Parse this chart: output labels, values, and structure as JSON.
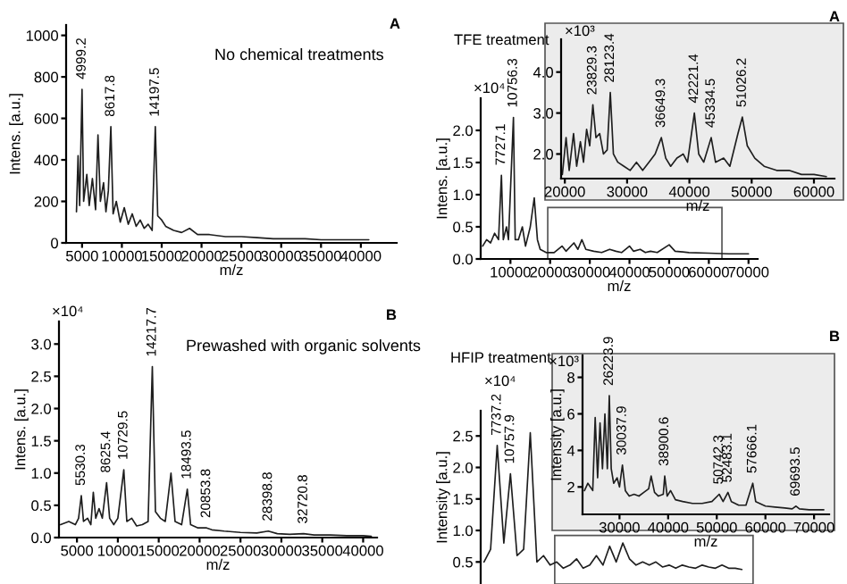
{
  "chart_data": [
    {
      "type": "line",
      "title": "No chemical treatments",
      "xlabel": "m/z",
      "ylabel": "Intens. [a.u.]",
      "xlim": [
        3000,
        44500
      ],
      "ylim": [
        0,
        1050
      ],
      "xticks": [
        5000,
        10000,
        15000,
        20000,
        25000,
        30000,
        35000,
        40000
      ],
      "yticks": [
        0,
        200,
        400,
        600,
        800,
        1000
      ],
      "x": [
        4300,
        4500,
        4700,
        4999,
        5200,
        5600,
        5900,
        6300,
        6700,
        7000,
        7300,
        7700,
        8000,
        8300,
        8617,
        8900,
        9300,
        9800,
        10300,
        10800,
        11300,
        11800,
        12300,
        12800,
        13300,
        13800,
        14197,
        14500,
        15000,
        15500,
        16500,
        17500,
        18500,
        19500,
        21000,
        23000,
        25000,
        27000,
        29000,
        31000,
        33000,
        35000,
        37000,
        39000,
        41000
      ],
      "series": [
        {
          "color": "#1e1e1e",
          "values": [
            150,
            420,
            180,
            740,
            200,
            330,
            180,
            310,
            160,
            520,
            200,
            290,
            150,
            250,
            560,
            140,
            200,
            100,
            170,
            90,
            140,
            80,
            110,
            70,
            90,
            60,
            560,
            130,
            110,
            80,
            60,
            50,
            70,
            40,
            40,
            30,
            30,
            25,
            20,
            20,
            20,
            15,
            15,
            15,
            15
          ]
        }
      ],
      "annotations": [
        "A",
        {
          "text": "4999.2",
          "x": 4999,
          "y": 740
        },
        {
          "text": "8617.8",
          "x": 8617,
          "y": 560
        },
        {
          "text": "14197.5",
          "x": 14197,
          "y": 560
        }
      ]
    },
    {
      "type": "line",
      "title": "TFE treatment",
      "xlabel": "m/z",
      "ylabel": "Intens. [a.u.]",
      "xlim": [
        2500,
        72300
      ],
      "ylim": [
        0,
        2.5
      ],
      "xticks": [
        10000,
        20000,
        30000,
        40000,
        50000,
        60000,
        70000
      ],
      "yticks": [
        {
          "value": 0,
          "label": "0.0"
        },
        {
          "value": 0.5,
          "label": "0.5"
        },
        {
          "value": 1,
          "label": "1.0"
        },
        {
          "value": 1.5,
          "label": "1.5"
        },
        {
          "value": 2,
          "label": "2.0"
        }
      ],
      "x": [
        3000,
        4000,
        5000,
        6000,
        7000,
        7727,
        8200,
        9000,
        9500,
        10756,
        11200,
        12000,
        13000,
        13800,
        15000,
        16000,
        16800,
        17500,
        19000,
        21000,
        23000,
        24000,
        26000,
        27000,
        28000,
        29000,
        31000,
        33000,
        35000,
        36600,
        38000,
        40000,
        41000,
        42700,
        44000,
        45300,
        47000,
        50000,
        51500,
        55000,
        60000,
        65000,
        70000
      ],
      "series": [
        {
          "color": "#1e1e1e",
          "values": [
            0.2,
            0.3,
            0.25,
            0.4,
            0.3,
            1.3,
            0.3,
            0.5,
            0.3,
            2.2,
            0.3,
            0.3,
            0.5,
            0.2,
            0.5,
            0.95,
            0.3,
            0.15,
            0.1,
            0.1,
            0.2,
            0.12,
            0.25,
            0.15,
            0.3,
            0.15,
            0.12,
            0.1,
            0.15,
            0.12,
            0.1,
            0.2,
            0.12,
            0.15,
            0.1,
            0.12,
            0.1,
            0.22,
            0.12,
            0.1,
            0.09,
            0.08,
            0.08
          ]
        }
      ],
      "annotations": [
        "A",
        "×10⁴",
        {
          "text": "7727.1",
          "x": 7727,
          "y": 1.3
        },
        {
          "text": "10756.3",
          "x": 10756,
          "y": 2.2
        }
      ]
    },
    {
      "type": "line",
      "xlabel": "m/z",
      "xlim": [
        19400,
        63300
      ],
      "ylim": [
        1.4,
        4.8
      ],
      "xticks": [
        20000,
        30000,
        40000,
        50000,
        60000
      ],
      "yticks": [
        {
          "value": 2,
          "label": "2.0"
        },
        {
          "value": 3,
          "label": "3.0"
        },
        {
          "value": 4,
          "label": "4.0"
        }
      ],
      "x": [
        19600,
        20200,
        20700,
        21400,
        21900,
        22500,
        23000,
        23500,
        24000,
        24500,
        25000,
        25600,
        26200,
        26800,
        27300,
        27800,
        28500,
        29500,
        30500,
        31500,
        32500,
        33500,
        34500,
        35500,
        36200,
        37000,
        38000,
        39000,
        39700,
        40800,
        41500,
        42300,
        43500,
        44200,
        45500,
        46500,
        47800,
        48500,
        49300,
        50500,
        52000,
        54000,
        56000,
        58000,
        60000,
        62000
      ],
      "series": [
        {
          "color": "#1e1e1e",
          "values": [
            1.5,
            2.4,
            1.6,
            2.5,
            1.7,
            2.3,
            1.8,
            2.6,
            2.2,
            3.2,
            2.4,
            2.5,
            2.0,
            2.1,
            3.5,
            2.0,
            1.8,
            1.7,
            1.6,
            1.8,
            1.6,
            1.8,
            2.0,
            2.4,
            1.9,
            1.7,
            1.9,
            2.0,
            1.8,
            3.0,
            2.0,
            1.8,
            2.4,
            1.8,
            1.9,
            1.7,
            2.5,
            2.9,
            2.2,
            1.9,
            1.7,
            1.6,
            1.6,
            1.5,
            1.5,
            1.45
          ]
        }
      ],
      "annotations": [
        "×10³",
        {
          "text": "23829.3",
          "x": 24500,
          "y": 3.2
        },
        {
          "text": "28123.4",
          "x": 27300,
          "y": 3.5
        },
        {
          "text": "36649.3",
          "x": 35500,
          "y": 2.4
        },
        {
          "text": "42221.4",
          "x": 40800,
          "y": 3.0
        },
        {
          "text": "45334.5",
          "x": 43500,
          "y": 2.4
        },
        {
          "text": "51026.2",
          "x": 48500,
          "y": 2.9
        }
      ]
    },
    {
      "type": "line",
      "title": "Prewashed with organic solvents",
      "xlabel": "m/z",
      "ylabel": "Intens. [a.u.]",
      "xlim": [
        2800,
        41700
      ],
      "ylim": [
        0,
        3.35
      ],
      "xticks": [
        5000,
        10000,
        15000,
        20000,
        25000,
        30000,
        35000,
        40000
      ],
      "yticks": [
        {
          "value": 0,
          "label": "0.0"
        },
        {
          "value": 0.5,
          "label": "0.5"
        },
        {
          "value": 1,
          "label": "1.0"
        },
        {
          "value": 1.5,
          "label": "1.5"
        },
        {
          "value": 2,
          "label": "2.0"
        },
        {
          "value": 2.5,
          "label": "2.5"
        },
        {
          "value": 3,
          "label": "3.0"
        }
      ],
      "x": [
        3000,
        4000,
        4800,
        5200,
        5530,
        5800,
        6300,
        6700,
        7000,
        7300,
        7700,
        8100,
        8625,
        9000,
        9500,
        10000,
        10730,
        11100,
        11700,
        12300,
        13000,
        13700,
        14218,
        14600,
        15200,
        15800,
        16500,
        17000,
        17800,
        18494,
        18900,
        19800,
        20854,
        21500,
        23000,
        25000,
        27000,
        28399,
        29500,
        31000,
        32721,
        34000,
        36000,
        38000,
        40000,
        41000
      ],
      "series": [
        {
          "color": "#1e1e1e",
          "values": [
            0.2,
            0.25,
            0.2,
            0.3,
            0.65,
            0.25,
            0.3,
            0.2,
            0.7,
            0.3,
            0.45,
            0.3,
            0.85,
            0.3,
            0.2,
            0.3,
            1.05,
            0.25,
            0.3,
            0.18,
            0.2,
            0.25,
            2.65,
            0.4,
            0.3,
            0.25,
            1.0,
            0.25,
            0.2,
            0.75,
            0.2,
            0.15,
            0.15,
            0.12,
            0.1,
            0.08,
            0.07,
            0.1,
            0.06,
            0.05,
            0.06,
            0.04,
            0.04,
            0.03,
            0.03,
            0.02
          ]
        }
      ],
      "annotations": [
        "B",
        "×10⁴",
        {
          "text": "5530.3",
          "x": 5530,
          "y": 0.65
        },
        {
          "text": "8625.4",
          "x": 8625,
          "y": 0.85
        },
        {
          "text": "10729.5",
          "x": 10730,
          "y": 1.05
        },
        {
          "text": "14217.7",
          "x": 14218,
          "y": 2.65
        },
        {
          "text": "18493.5",
          "x": 18494,
          "y": 0.75
        },
        {
          "text": "20853.8",
          "x": 20854,
          "y": 0.15
        },
        {
          "text": "28398.8",
          "x": 28399,
          "y": 0.1
        },
        {
          "text": "32720.8",
          "x": 32721,
          "y": 0.06
        }
      ]
    },
    {
      "type": "line",
      "title": "HFIP treatment",
      "ylabel": "Intensity [a.u.]",
      "tick_labels": "y",
      "ylim": [
        0.15,
        2.9
      ],
      "yticks": [
        {
          "value": 0.5,
          "label": "0.5"
        },
        {
          "value": 1,
          "label": "1.0"
        },
        {
          "value": 1.5,
          "label": "1.5"
        },
        {
          "value": 2,
          "label": "2.0"
        },
        {
          "value": 2.5,
          "label": "2.5"
        }
      ],
      "categories": [
        null,
        null,
        null,
        null,
        null,
        null,
        null,
        null,
        null,
        null,
        null,
        null,
        null,
        null,
        null,
        null,
        null,
        null,
        null,
        null,
        null,
        null,
        null,
        null,
        null,
        null,
        null,
        null,
        null,
        null,
        null,
        null,
        null,
        null,
        null,
        null,
        null,
        null,
        null,
        null
      ],
      "series": [
        {
          "color": "#1e1e1e",
          "values": [
            0.5,
            0.7,
            2.35,
            0.8,
            1.9,
            0.6,
            0.7,
            2.55,
            0.5,
            0.6,
            0.45,
            0.5,
            0.4,
            0.45,
            0.55,
            0.4,
            0.45,
            0.6,
            0.45,
            0.75,
            0.5,
            0.8,
            0.55,
            0.45,
            0.5,
            0.45,
            0.5,
            0.42,
            0.45,
            0.4,
            0.45,
            0.42,
            0.4,
            0.45,
            0.42,
            0.4,
            0.45,
            0.4,
            0.4,
            0.38
          ]
        }
      ],
      "annotations": [
        "B",
        "×10⁴",
        {
          "text": "7737.2",
          "y": 2.35
        },
        {
          "text": "10757.9",
          "y": 1.9
        }
      ]
    },
    {
      "type": "line",
      "xlabel": "m/z",
      "ylabel": "Intensity [a.u.]",
      "xlim": [
        22400,
        73100
      ],
      "ylim": [
        0.5,
        9.2
      ],
      "xticks": [
        30000,
        40000,
        50000,
        60000,
        70000
      ],
      "yticks": [
        2,
        4,
        6,
        8
      ],
      "x": [
        22800,
        23500,
        24500,
        25000,
        25500,
        26000,
        26500,
        27000,
        27500,
        27900,
        28300,
        28800,
        29500,
        30000,
        30600,
        31200,
        32000,
        33000,
        34000,
        35000,
        36000,
        36500,
        37200,
        38000,
        39000,
        39300,
        39800,
        40500,
        41500,
        43000,
        45000,
        47000,
        49000,
        50500,
        51300,
        52300,
        53000,
        54500,
        56000,
        57400,
        58000,
        60000,
        62000,
        64000,
        65500,
        66300,
        67000,
        69000,
        72000
      ],
      "series": [
        {
          "color": "#1e1e1e",
          "values": [
            1.8,
            2.2,
            1.8,
            5.8,
            2.5,
            5.5,
            3.0,
            6.0,
            3.0,
            7.0,
            3.0,
            2.2,
            2.5,
            2.0,
            3.2,
            1.8,
            1.5,
            1.6,
            1.5,
            1.7,
            1.9,
            2.6,
            1.7,
            1.5,
            1.6,
            2.6,
            1.5,
            1.8,
            1.3,
            1.2,
            1.1,
            1.1,
            1.2,
            1.6,
            1.2,
            1.7,
            1.2,
            1.0,
            1.0,
            2.2,
            1.2,
            0.95,
            0.9,
            0.85,
            0.8,
            0.95,
            0.8,
            0.75,
            0.75
          ]
        }
      ],
      "annotations": [
        "×10³",
        {
          "text": "26223.9",
          "x": 27900,
          "y": 7.0
        },
        {
          "text": "30037.9",
          "x": 30600,
          "y": 3.2
        },
        {
          "text": "38900.6",
          "x": 39300,
          "y": 2.6
        },
        {
          "text": "50742.3",
          "x": 50500,
          "y": 1.6
        },
        {
          "text": "52483.1",
          "x": 52300,
          "y": 1.7
        },
        {
          "text": "57666.1",
          "x": 57400,
          "y": 2.2
        },
        {
          "text": "69693.5",
          "x": 66300,
          "y": 0.95
        }
      ]
    }
  ]
}
